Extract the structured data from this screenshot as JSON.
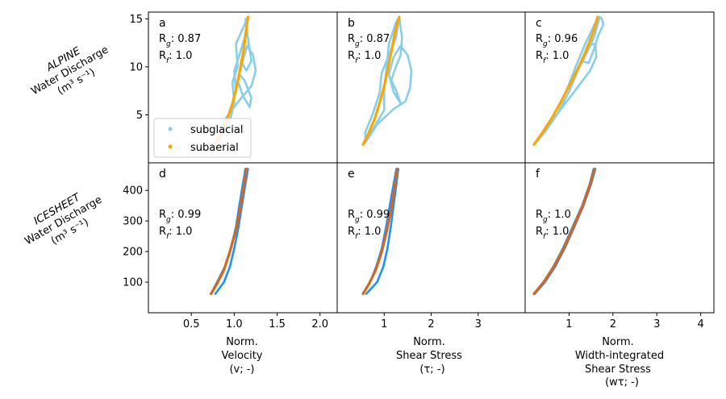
{
  "colors": {
    "alpine_subglacial": "#87CEEB",
    "alpine_subaerial": "#FFA500",
    "icesheet_subglacial": "#1E90FF",
    "icesheet_subaerial": "#D2691E"
  },
  "row_labels": {
    "alpine": [
      "ALPINE",
      "Water Discharge",
      "(m³ s⁻¹)"
    ],
    "icesheet": [
      "ICESHEET",
      "Water Discharge",
      "(m³ s⁻¹)"
    ]
  },
  "column_labels": [
    [
      "Norm.",
      "Velocity",
      "(v; -)"
    ],
    [
      "Norm.",
      "Shear Stress",
      "(τ; -)"
    ],
    [
      "Norm.",
      "Width-integrated",
      "Shear Stress",
      "(wτ; -)"
    ]
  ],
  "legend": {
    "subglacial": "subglacial",
    "subaerial": "subaerial"
  },
  "chart_data": [
    {
      "type": "line",
      "panel": "a",
      "row": "alpine",
      "col": 0,
      "stats": {
        "Rg": "0.87",
        "Rf": "1.0"
      },
      "xlim": [
        0,
        2.2
      ],
      "ylim": [
        0,
        15.7
      ],
      "x_ticks": [
        0.5,
        1.0,
        1.5,
        2.0
      ],
      "y_ticks": [
        5,
        10,
        15
      ],
      "series": [
        {
          "name": "subglacial",
          "color": "#87CEEB",
          "points": [
            [
              0.82,
              2.0
            ],
            [
              0.95,
              4.4
            ],
            [
              1.0,
              6.2
            ],
            [
              0.98,
              8.4
            ],
            [
              1.04,
              10.0
            ],
            [
              1.02,
              12.4
            ],
            [
              1.13,
              14.6
            ],
            [
              1.16,
              15.2
            ],
            [
              1.12,
              13.0
            ],
            [
              1.06,
              11.2
            ],
            [
              1.0,
              9.6
            ],
            [
              1.02,
              7.4
            ],
            [
              0.95,
              5.4
            ],
            [
              0.9,
              3.6
            ],
            [
              0.84,
              2.4
            ],
            [
              0.88,
              4.4
            ],
            [
              1.05,
              6.4
            ],
            [
              1.2,
              8.0
            ],
            [
              1.25,
              9.6
            ],
            [
              1.22,
              11.2
            ],
            [
              1.15,
              12.2
            ],
            [
              1.1,
              10.6
            ],
            [
              1.04,
              8.6
            ],
            [
              1.1,
              7.0
            ],
            [
              1.18,
              5.8
            ],
            [
              1.2,
              6.8
            ],
            [
              1.12,
              8.6
            ],
            [
              1.06,
              9.2
            ],
            [
              1.08,
              10.6
            ],
            [
              1.14,
              9.6
            ],
            [
              1.2,
              10.6
            ],
            [
              1.16,
              13.0
            ],
            [
              1.13,
              14.9
            ],
            [
              1.16,
              15.2
            ]
          ]
        },
        {
          "name": "subaerial",
          "color": "#FFA500",
          "points": [
            [
              0.78,
              1.9
            ],
            [
              0.85,
              3.2
            ],
            [
              0.92,
              4.6
            ],
            [
              0.98,
              6.2
            ],
            [
              1.03,
              8.0
            ],
            [
              1.07,
              9.8
            ],
            [
              1.11,
              11.8
            ],
            [
              1.14,
              13.8
            ],
            [
              1.16,
              15.2
            ]
          ]
        }
      ]
    },
    {
      "type": "line",
      "panel": "b",
      "row": "alpine",
      "col": 1,
      "stats": {
        "Rg": "0.87",
        "Rf": "1.0"
      },
      "xlim": [
        0,
        4.0
      ],
      "ylim": [
        0,
        15.7
      ],
      "x_ticks": [
        1,
        2,
        3
      ],
      "y_ticks": [
        5,
        10,
        15
      ],
      "series": [
        {
          "name": "subglacial",
          "color": "#87CEEB",
          "points": [
            [
              0.55,
              2.0
            ],
            [
              0.8,
              3.8
            ],
            [
              1.0,
              5.5
            ],
            [
              1.0,
              7.6
            ],
            [
              1.05,
              10.0
            ],
            [
              1.1,
              12.4
            ],
            [
              1.25,
              14.6
            ],
            [
              1.32,
              15.2
            ],
            [
              1.25,
              13.0
            ],
            [
              1.1,
              11.2
            ],
            [
              0.95,
              9.4
            ],
            [
              0.9,
              7.2
            ],
            [
              0.75,
              5.0
            ],
            [
              0.6,
              3.2
            ],
            [
              0.6,
              2.1
            ],
            [
              0.85,
              4.0
            ],
            [
              1.2,
              5.6
            ],
            [
              1.45,
              6.4
            ],
            [
              1.55,
              7.8
            ],
            [
              1.58,
              9.6
            ],
            [
              1.5,
              11.2
            ],
            [
              1.35,
              12.2
            ],
            [
              1.2,
              11.0
            ],
            [
              1.1,
              9.2
            ],
            [
              1.2,
              7.4
            ],
            [
              1.35,
              6.2
            ],
            [
              1.25,
              7.6
            ],
            [
              1.15,
              8.6
            ],
            [
              1.25,
              10.0
            ],
            [
              1.35,
              11.2
            ],
            [
              1.38,
              13.0
            ],
            [
              1.32,
              15.2
            ]
          ]
        },
        {
          "name": "subaerial",
          "color": "#FFA500",
          "points": [
            [
              0.55,
              1.9
            ],
            [
              0.68,
              3.2
            ],
            [
              0.8,
              4.6
            ],
            [
              0.9,
              6.2
            ],
            [
              1.0,
              8.0
            ],
            [
              1.08,
              9.8
            ],
            [
              1.16,
              11.8
            ],
            [
              1.24,
              13.8
            ],
            [
              1.32,
              15.2
            ]
          ]
        }
      ]
    },
    {
      "type": "line",
      "panel": "c",
      "row": "alpine",
      "col": 2,
      "stats": {
        "Rg": "0.96",
        "Rf": "1.0"
      },
      "xlim": [
        0,
        4.3
      ],
      "ylim": [
        0,
        15.7
      ],
      "x_ticks": [
        1,
        2,
        3,
        4
      ],
      "y_ticks": [
        5,
        10,
        15
      ],
      "series": [
        {
          "name": "subglacial",
          "color": "#87CEEB",
          "points": [
            [
              0.2,
              1.9
            ],
            [
              0.5,
              3.6
            ],
            [
              0.7,
              5.4
            ],
            [
              0.95,
              7.6
            ],
            [
              1.15,
              10.0
            ],
            [
              1.35,
              12.2
            ],
            [
              1.6,
              14.6
            ],
            [
              1.7,
              15.2
            ],
            [
              1.58,
              13.2
            ],
            [
              1.42,
              11.6
            ],
            [
              1.2,
              9.6
            ],
            [
              1.0,
              7.4
            ],
            [
              0.75,
              5.2
            ],
            [
              0.45,
              3.2
            ],
            [
              0.22,
              2.0
            ],
            [
              0.55,
              4.0
            ],
            [
              0.95,
              6.4
            ],
            [
              1.25,
              8.2
            ],
            [
              1.48,
              9.6
            ],
            [
              1.62,
              11.0
            ],
            [
              1.6,
              12.4
            ],
            [
              1.42,
              12.2
            ],
            [
              1.28,
              10.6
            ],
            [
              1.45,
              10.4
            ],
            [
              1.58,
              12.0
            ],
            [
              1.66,
              13.2
            ],
            [
              1.78,
              14.4
            ],
            [
              1.75,
              15.0
            ],
            [
              1.7,
              15.2
            ]
          ]
        },
        {
          "name": "subaerial",
          "color": "#FFA500",
          "points": [
            [
              0.2,
              1.9
            ],
            [
              0.4,
              3.2
            ],
            [
              0.6,
              4.6
            ],
            [
              0.8,
              6.2
            ],
            [
              1.0,
              8.0
            ],
            [
              1.2,
              9.8
            ],
            [
              1.4,
              11.8
            ],
            [
              1.55,
              13.6
            ],
            [
              1.65,
              15.2
            ]
          ]
        }
      ]
    },
    {
      "type": "line",
      "panel": "d",
      "row": "icesheet",
      "col": 0,
      "stats": {
        "Rg": "0.99",
        "Rf": "1.0"
      },
      "xlim": [
        0,
        2.2
      ],
      "ylim": [
        0,
        490
      ],
      "x_ticks": [
        0.5,
        1.0,
        1.5,
        2.0
      ],
      "x_tick_labels": [
        "0.5",
        "1.0",
        "1.5",
        "2.0"
      ],
      "y_ticks": [
        100,
        200,
        300,
        400
      ],
      "series": [
        {
          "name": "subglacial",
          "color": "#1E90FF",
          "points": [
            [
              0.78,
              62
            ],
            [
              0.88,
              100
            ],
            [
              0.95,
              150
            ],
            [
              1.0,
              210
            ],
            [
              1.05,
              280
            ],
            [
              1.09,
              350
            ],
            [
              1.13,
              420
            ],
            [
              1.16,
              470
            ],
            [
              1.13,
              470
            ],
            [
              1.1,
              420
            ],
            [
              1.06,
              350
            ],
            [
              1.02,
              280
            ],
            [
              0.96,
              210
            ],
            [
              0.89,
              150
            ],
            [
              0.8,
              100
            ],
            [
              0.73,
              62
            ]
          ]
        },
        {
          "name": "subaerial",
          "color": "#D2691E",
          "points": [
            [
              0.73,
              62
            ],
            [
              0.8,
              95
            ],
            [
              0.88,
              140
            ],
            [
              0.95,
              200
            ],
            [
              1.02,
              270
            ],
            [
              1.07,
              340
            ],
            [
              1.11,
              410
            ],
            [
              1.14,
              470
            ]
          ]
        }
      ]
    },
    {
      "type": "line",
      "panel": "e",
      "row": "icesheet",
      "col": 1,
      "stats": {
        "Rg": "0.99",
        "Rf": "1.0"
      },
      "xlim": [
        0,
        4.0
      ],
      "ylim": [
        0,
        490
      ],
      "x_ticks": [
        1,
        2,
        3
      ],
      "y_ticks": [
        100,
        200,
        300,
        400
      ],
      "series": [
        {
          "name": "subglacial",
          "color": "#1E90FF",
          "points": [
            [
              0.62,
              62
            ],
            [
              0.85,
              100
            ],
            [
              0.98,
              150
            ],
            [
              1.07,
              210
            ],
            [
              1.14,
              280
            ],
            [
              1.2,
              350
            ],
            [
              1.26,
              420
            ],
            [
              1.3,
              470
            ],
            [
              1.26,
              470
            ],
            [
              1.2,
              420
            ],
            [
              1.12,
              350
            ],
            [
              1.04,
              280
            ],
            [
              0.95,
              210
            ],
            [
              0.83,
              150
            ],
            [
              0.7,
              100
            ],
            [
              0.55,
              62
            ]
          ]
        },
        {
          "name": "subaerial",
          "color": "#D2691E",
          "points": [
            [
              0.55,
              62
            ],
            [
              0.68,
              95
            ],
            [
              0.82,
              140
            ],
            [
              0.95,
              200
            ],
            [
              1.06,
              270
            ],
            [
              1.15,
              340
            ],
            [
              1.22,
              410
            ],
            [
              1.28,
              470
            ]
          ]
        }
      ]
    },
    {
      "type": "line",
      "panel": "f",
      "row": "icesheet",
      "col": 2,
      "stats": {
        "Rg": "1.0",
        "Rf": "1.0"
      },
      "xlim": [
        0,
        4.3
      ],
      "ylim": [
        0,
        490
      ],
      "x_ticks": [
        1,
        2,
        3,
        4
      ],
      "y_ticks": [
        100,
        200,
        300,
        400
      ],
      "series": [
        {
          "name": "subglacial",
          "color": "#1E90FF",
          "points": [
            [
              0.22,
              62
            ],
            [
              0.45,
              100
            ],
            [
              0.68,
              150
            ],
            [
              0.9,
              210
            ],
            [
              1.12,
              280
            ],
            [
              1.33,
              350
            ],
            [
              1.5,
              420
            ],
            [
              1.6,
              470
            ],
            [
              1.56,
              470
            ],
            [
              1.47,
              420
            ],
            [
              1.3,
              350
            ],
            [
              1.08,
              280
            ],
            [
              0.86,
              210
            ],
            [
              0.64,
              150
            ],
            [
              0.42,
              100
            ],
            [
              0.2,
              62
            ]
          ]
        },
        {
          "name": "subaerial",
          "color": "#D2691E",
          "points": [
            [
              0.2,
              62
            ],
            [
              0.42,
              100
            ],
            [
              0.65,
              150
            ],
            [
              0.88,
              210
            ],
            [
              1.1,
              280
            ],
            [
              1.31,
              350
            ],
            [
              1.48,
              420
            ],
            [
              1.58,
              470
            ]
          ]
        }
      ]
    }
  ]
}
